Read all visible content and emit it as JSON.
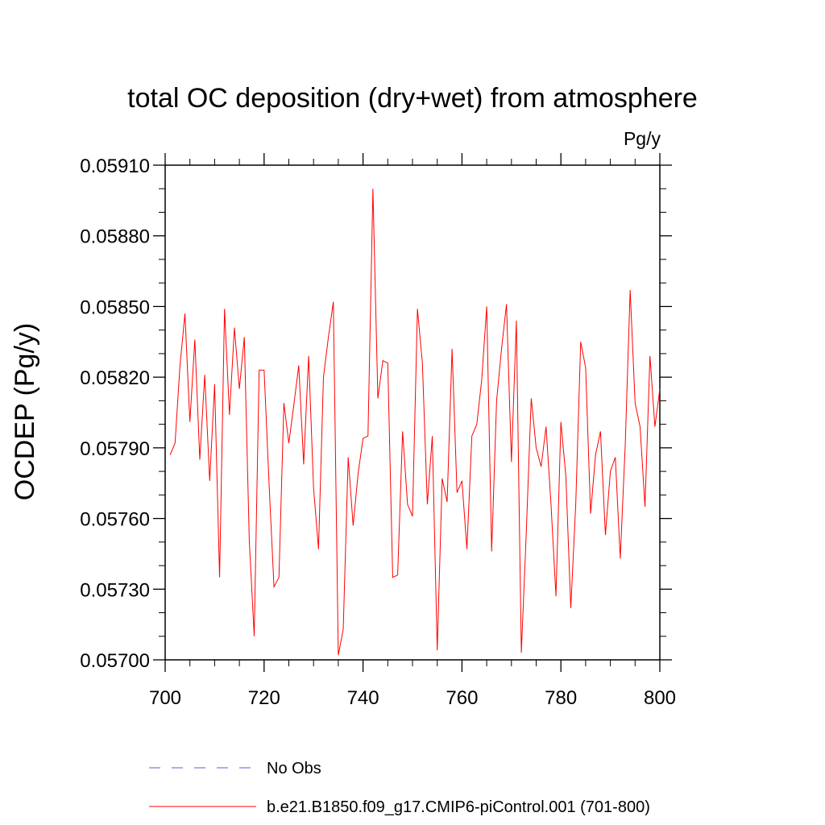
{
  "chart_data": {
    "type": "line",
    "title": "total OC deposition (dry+wet) from atmosphere",
    "units_label": "Pg/y",
    "xlabel": "",
    "ylabel": "OCDEP  (Pg/y)",
    "xlim": [
      700,
      800
    ],
    "ylim": [
      0.057,
      0.0591
    ],
    "x_ticks": [
      700,
      720,
      740,
      760,
      780,
      800
    ],
    "x_tick_labels": [
      "700",
      "720",
      "740",
      "760",
      "780",
      "800"
    ],
    "y_ticks": [
      0.057,
      0.0573,
      0.0576,
      0.0579,
      0.0582,
      0.0585,
      0.0588,
      0.0591
    ],
    "y_tick_labels": [
      "0.05700",
      "0.05730",
      "0.05760",
      "0.05790",
      "0.05820",
      "0.05850",
      "0.05880",
      "0.05910"
    ],
    "grid": false,
    "legend": [
      {
        "label": "No Obs",
        "color": "#6a5acd",
        "style": "dashed"
      },
      {
        "label": "b.e21.B1850.f09_g17.CMIP6-piControl.001 (701-800)",
        "color": "#ff0000",
        "style": "solid"
      }
    ],
    "series": [
      {
        "name": "b.e21.B1850.f09_g17.CMIP6-piControl.001 (701-800)",
        "color": "#ff0000",
        "x": [
          701,
          702,
          703,
          704,
          705,
          706,
          707,
          708,
          709,
          710,
          711,
          712,
          713,
          714,
          715,
          716,
          717,
          718,
          719,
          720,
          721,
          722,
          723,
          724,
          725,
          726,
          727,
          728,
          729,
          730,
          731,
          732,
          733,
          734,
          735,
          736,
          737,
          738,
          739,
          740,
          741,
          742,
          743,
          744,
          745,
          746,
          747,
          748,
          749,
          750,
          751,
          752,
          753,
          754,
          755,
          756,
          757,
          758,
          759,
          760,
          761,
          762,
          763,
          764,
          765,
          766,
          767,
          768,
          769,
          770,
          771,
          772,
          773,
          774,
          775,
          776,
          777,
          778,
          779,
          780,
          781,
          782,
          783,
          784,
          785,
          786,
          787,
          788,
          789,
          790,
          791,
          792,
          793,
          794,
          795,
          796,
          797,
          798,
          799,
          800
        ],
        "values": [
          0.05787,
          0.05792,
          0.05825,
          0.05847,
          0.05801,
          0.05836,
          0.05785,
          0.05821,
          0.05776,
          0.05817,
          0.05735,
          0.05849,
          0.05804,
          0.05841,
          0.05815,
          0.05837,
          0.05751,
          0.0571,
          0.05823,
          0.05823,
          0.05775,
          0.05731,
          0.05735,
          0.05809,
          0.05792,
          0.05808,
          0.05825,
          0.05783,
          0.05829,
          0.05773,
          0.05747,
          0.0582,
          0.05837,
          0.05852,
          0.05702,
          0.05713,
          0.05786,
          0.05757,
          0.05779,
          0.05794,
          0.05795,
          0.059,
          0.05811,
          0.05827,
          0.05826,
          0.05735,
          0.05736,
          0.05797,
          0.05766,
          0.05761,
          0.05849,
          0.05826,
          0.05766,
          0.05795,
          0.05704,
          0.05777,
          0.05767,
          0.05832,
          0.05771,
          0.05776,
          0.05747,
          0.05795,
          0.058,
          0.05819,
          0.0585,
          0.05746,
          0.0581,
          0.05832,
          0.05851,
          0.05784,
          0.05844,
          0.05703,
          0.05754,
          0.05811,
          0.0579,
          0.05782,
          0.05799,
          0.05766,
          0.05727,
          0.05801,
          0.05778,
          0.05722,
          0.05766,
          0.05835,
          0.05824,
          0.05762,
          0.05787,
          0.05797,
          0.05753,
          0.0578,
          0.05786,
          0.05743,
          0.05791,
          0.05857,
          0.05809,
          0.05799,
          0.05765,
          0.05829,
          0.05799,
          0.05815
        ]
      }
    ]
  }
}
